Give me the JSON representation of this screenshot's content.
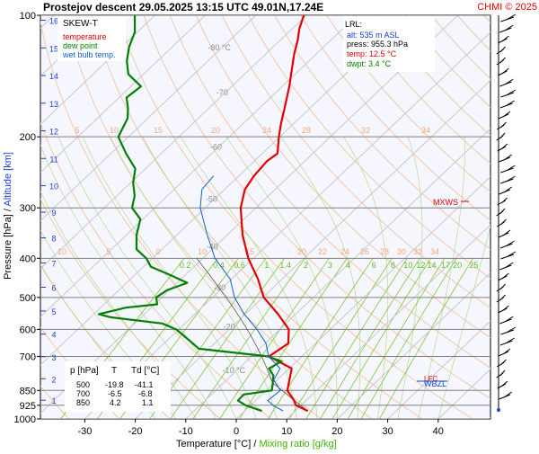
{
  "header": {
    "title": "Prostejov   descent   29.05.2025 13:15 UTC  49.01N,17.24E",
    "credit": "CHMI © 2025"
  },
  "legend": {
    "title": "SKEW-T",
    "items": [
      {
        "label": "temperature",
        "color": "#e00000"
      },
      {
        "label": "dew point",
        "color": "#008000"
      },
      {
        "label": "wet bulb temp.",
        "color": "#1060d0"
      }
    ]
  },
  "lrl": {
    "title": "LRL:",
    "alt": "alt: 535 m ASL",
    "press": "press: 955.3 hPa",
    "temp": "temp: 12.5 °C",
    "dwpt": "dwpt: 3.4 °C"
  },
  "table": {
    "headers": [
      "p [hPa]",
      "T",
      "Td [°C]"
    ],
    "rows": [
      [
        "500",
        "-19.8",
        "-41.1"
      ],
      [
        "700",
        "-6.5",
        "-6.8"
      ],
      [
        "850",
        "4.2",
        "1.1"
      ]
    ]
  },
  "markers": {
    "mxws": "MXWS",
    "wbzl": "WBZL",
    "lfc": "LFC"
  },
  "chart_data": {
    "type": "line",
    "title": "Prostejov   descent   29.05.2025 13:15 UTC  49.01N,17.24E",
    "xlabel": "Temperature [°C]",
    "xlabel2": "Mixing ratio [g/kg]",
    "ylabel": "Pressure [hPa]",
    "ylabel2": "Altitude [km]",
    "xlim": [
      -40,
      50
    ],
    "ylim": [
      1000,
      100
    ],
    "x_ticks": [
      -30,
      -20,
      -10,
      0,
      10,
      20,
      30,
      40
    ],
    "pressure_ticks": [
      100,
      200,
      300,
      400,
      500,
      600,
      700,
      850,
      925,
      1000
    ],
    "altitude_ticks": [
      1,
      2,
      3,
      4,
      5,
      6,
      7,
      8,
      9,
      10,
      11,
      12,
      13,
      14,
      15,
      16
    ],
    "isotherm_labels": [
      -80,
      -70,
      -60,
      -50,
      -40,
      -30,
      -20,
      -10
    ],
    "mixing_ratio_labels": [
      "0.2",
      "0.4",
      "0.6",
      "1",
      "1.4",
      "2",
      "3",
      "4",
      "6",
      "8",
      "10",
      "12",
      "14",
      "17",
      "20",
      "25"
    ],
    "theta_upper_labels": [
      "5",
      "10",
      "15",
      "20",
      "24",
      "28",
      "32",
      "34"
    ],
    "theta_lower_labels": [
      "10",
      "5",
      "0",
      "10",
      "15",
      "20",
      "22",
      "24",
      "26",
      "28",
      "30",
      "32",
      "34"
    ],
    "series": [
      {
        "name": "temperature",
        "color": "#e00000",
        "points": [
          [
            955.3,
            12.5
          ],
          [
            925,
            9.0
          ],
          [
            900,
            7.6
          ],
          [
            850,
            4.2
          ],
          [
            800,
            2.4
          ],
          [
            750,
            0.5
          ],
          [
            700,
            -6.5
          ],
          [
            650,
            -5.4
          ],
          [
            600,
            -8.2
          ],
          [
            550,
            -13.5
          ],
          [
            500,
            -19.8
          ],
          [
            450,
            -24.8
          ],
          [
            400,
            -31.0
          ],
          [
            350,
            -37.0
          ],
          [
            300,
            -43.0
          ],
          [
            270,
            -46.0
          ],
          [
            250,
            -47.0
          ],
          [
            230,
            -47.5
          ],
          [
            220,
            -47.0
          ],
          [
            200,
            -50.2
          ],
          [
            185,
            -52.6
          ],
          [
            170,
            -55.0
          ],
          [
            150,
            -58.6
          ],
          [
            135,
            -61.9
          ],
          [
            125,
            -64.3
          ],
          [
            115,
            -66.6
          ],
          [
            108,
            -68.6
          ],
          [
            100,
            -70.5
          ]
        ]
      },
      {
        "name": "dew point",
        "color": "#008000",
        "points": [
          [
            955.3,
            3.4
          ],
          [
            925,
            -1.0
          ],
          [
            900,
            -3.5
          ],
          [
            870,
            -3.6
          ],
          [
            850,
            1.1
          ],
          [
            820,
            0.0
          ],
          [
            780,
            -1.7
          ],
          [
            750,
            -4.0
          ],
          [
            720,
            -3.0
          ],
          [
            700,
            -6.8
          ],
          [
            670,
            -22.0
          ],
          [
            640,
            -25.5
          ],
          [
            600,
            -30.5
          ],
          [
            580,
            -34.5
          ],
          [
            560,
            -46.0
          ],
          [
            550,
            -49.0
          ],
          [
            530,
            -45.0
          ],
          [
            520,
            -39.5
          ],
          [
            500,
            -41.1
          ],
          [
            480,
            -40.5
          ],
          [
            460,
            -38.0
          ],
          [
            440,
            -43.0
          ],
          [
            420,
            -48.5
          ],
          [
            400,
            -51.2
          ],
          [
            380,
            -55.0
          ],
          [
            350,
            -58.0
          ],
          [
            320,
            -60.5
          ],
          [
            300,
            -64.5
          ],
          [
            280,
            -66.5
          ],
          [
            260,
            -69.5
          ],
          [
            240,
            -72.0
          ],
          [
            220,
            -77.0
          ],
          [
            200,
            -82.0
          ],
          [
            180,
            -84.0
          ],
          [
            170,
            -86.0
          ],
          [
            160,
            -88.5
          ],
          [
            150,
            -88.0
          ],
          [
            140,
            -93.0
          ],
          [
            130,
            -96.0
          ],
          [
            120,
            -98.5
          ],
          [
            110,
            -100.5
          ],
          [
            100,
            -104.0
          ]
        ]
      },
      {
        "name": "wet bulb temp.",
        "color": "#1060d0",
        "points": [
          [
            955.3,
            7.6
          ],
          [
            925,
            4.4
          ],
          [
            900,
            2.4
          ],
          [
            850,
            2.8
          ],
          [
            800,
            -0.7
          ],
          [
            750,
            -1.8
          ],
          [
            700,
            -6.6
          ],
          [
            650,
            -9.8
          ],
          [
            600,
            -14.5
          ],
          [
            550,
            -20.2
          ],
          [
            500,
            -25.6
          ],
          [
            450,
            -30.3
          ],
          [
            400,
            -37.6
          ],
          [
            350,
            -44.0
          ],
          [
            300,
            -51.0
          ],
          [
            270,
            -54.5
          ],
          [
            250,
            -55.0
          ]
        ]
      }
    ]
  }
}
